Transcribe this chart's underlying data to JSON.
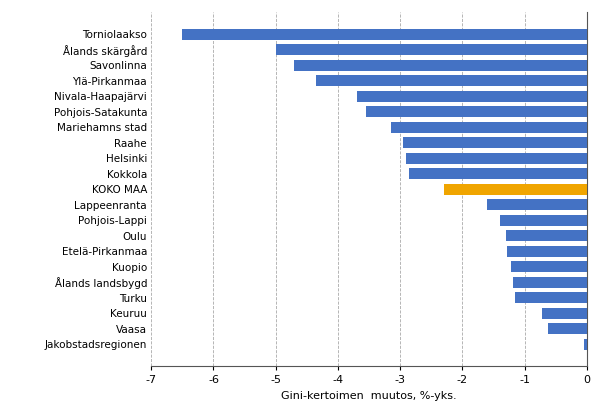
{
  "categories": [
    "Torniolaakso",
    "Ålands skärgård",
    "Savonlinna",
    "Ylä-Pirkanmaa",
    "Nivala-Haapajärvi",
    "Pohjois-Satakunta",
    "Mariehamns stad",
    "Raahe",
    "Helsinki",
    "Kokkola",
    "KOKO MAA",
    "Lappeenranta",
    "Pohjois-Lappi",
    "Oulu",
    "Etelä-Pirkanmaa",
    "Kuopio",
    "Ålands landsbygd",
    "Turku",
    "Keuruu",
    "Vaasa",
    "Jakobstadsregionen"
  ],
  "values": [
    -6.5,
    -5.0,
    -4.7,
    -4.35,
    -3.7,
    -3.55,
    -3.15,
    -2.95,
    -2.9,
    -2.85,
    -2.3,
    -1.6,
    -1.4,
    -1.3,
    -1.28,
    -1.22,
    -1.18,
    -1.15,
    -0.72,
    -0.62,
    -0.05
  ],
  "bar_colors": [
    "#4472c4",
    "#4472c4",
    "#4472c4",
    "#4472c4",
    "#4472c4",
    "#4472c4",
    "#4472c4",
    "#4472c4",
    "#4472c4",
    "#4472c4",
    "#f0a500",
    "#4472c4",
    "#4472c4",
    "#4472c4",
    "#4472c4",
    "#4472c4",
    "#4472c4",
    "#4472c4",
    "#4472c4",
    "#4472c4",
    "#4472c4"
  ],
  "xlabel": "Gini-kertoimen  muutos, %-yks.",
  "xlim": [
    -7,
    0
  ],
  "xticks": [
    -7,
    -6,
    -5,
    -4,
    -3,
    -2,
    -1,
    0
  ],
  "background_color": "#ffffff",
  "grid_color": "#aaaaaa",
  "label_fontsize": 7.5,
  "axis_fontsize": 8,
  "bar_height": 0.72
}
